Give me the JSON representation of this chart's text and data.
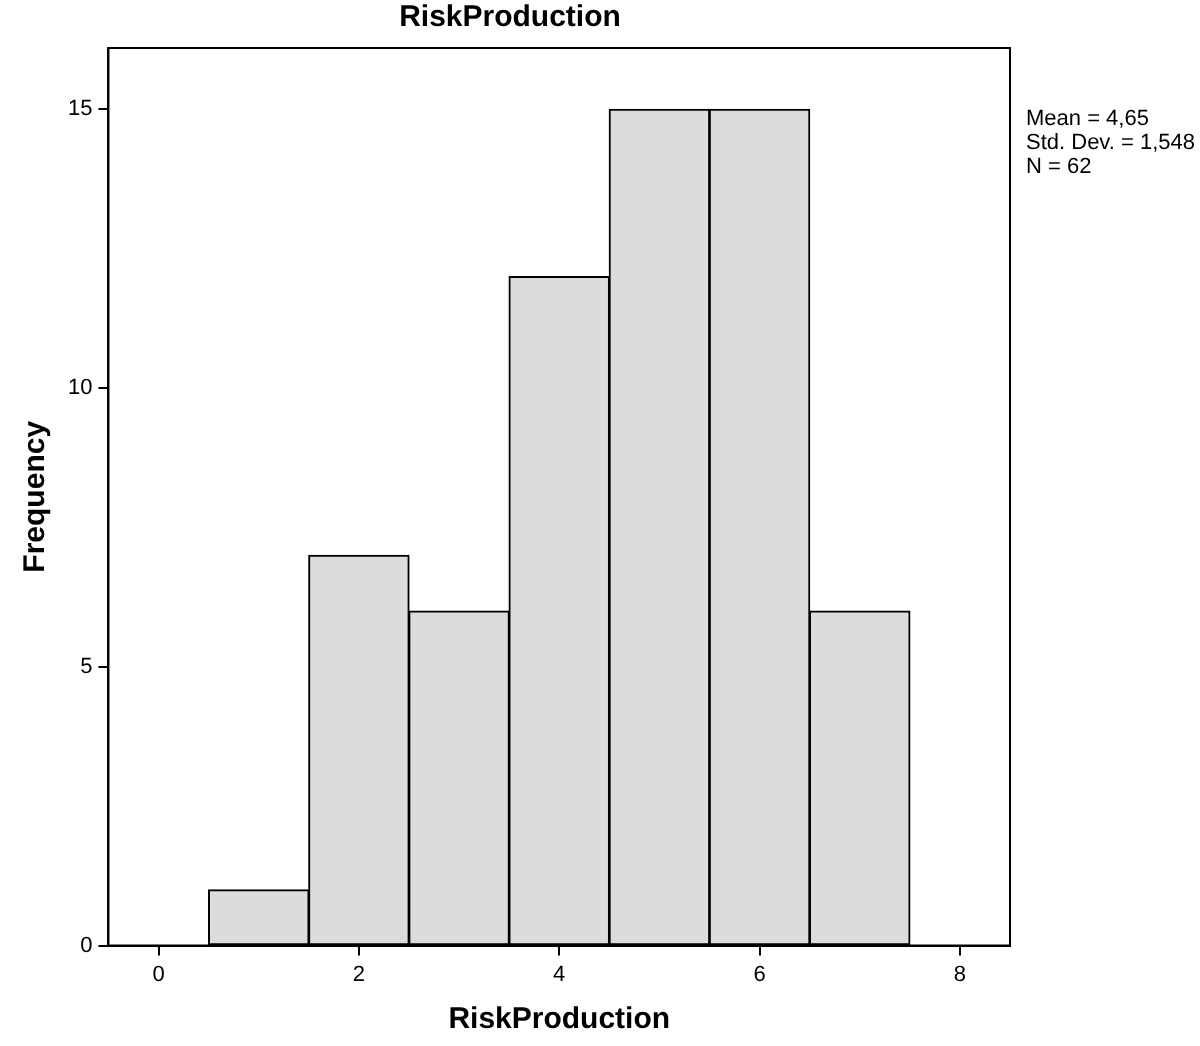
{
  "chart_data": {
    "type": "histogram",
    "title": "RiskProduction",
    "xlabel": "RiskProduction",
    "ylabel": "Frequency",
    "bins": [
      0.5,
      1.5,
      2.5,
      3.5,
      4.5,
      5.5,
      6.5,
      7.5
    ],
    "values": [
      1,
      7,
      6,
      12,
      15,
      15,
      6
    ],
    "color": "#dcdcdc",
    "xlim": [
      -0.5,
      8.5
    ],
    "xticks": [
      0,
      2,
      4,
      6,
      8
    ],
    "ylim": [
      0,
      16.1
    ],
    "yticks": [
      0,
      5,
      10,
      15
    ],
    "grid": false,
    "legend": false,
    "annotations": [
      "Mean = 4,65",
      "Std. Dev. = 1,548",
      "N = 62"
    ]
  }
}
